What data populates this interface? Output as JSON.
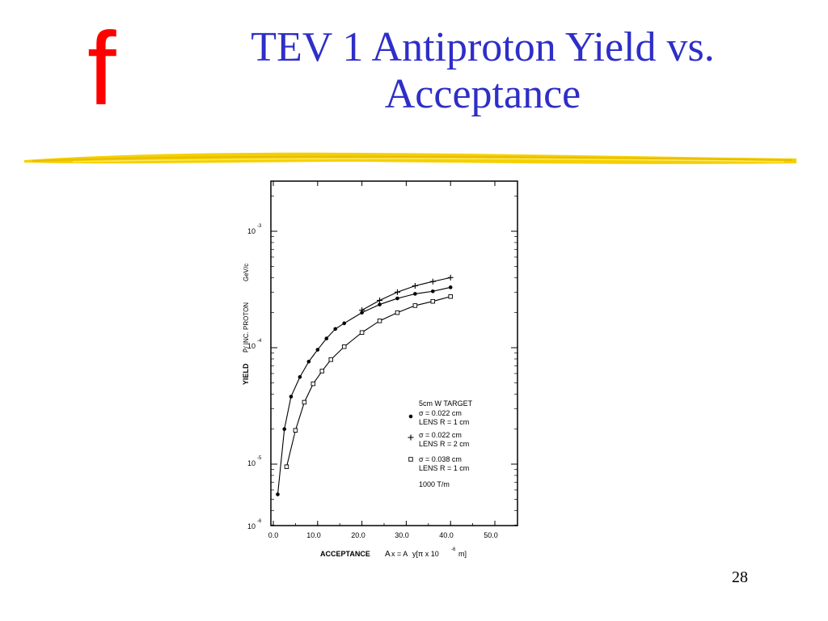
{
  "slide": {
    "logo": "f",
    "title_line1": "TEV 1 Antiproton Yield vs.",
    "title_line2": "Acceptance",
    "slide_number": "28",
    "colors": {
      "title": "#2e2ec8",
      "logo": "#ff0000",
      "rule": "#f5d000"
    }
  },
  "chart_data": {
    "type": "scatter",
    "xlabel": "ACCEPTANCE",
    "xlabel_formula": "A",
    "x_ticks": [
      "0.0",
      "10.0",
      "20.0",
      "30.0",
      "40.0",
      "50.0"
    ],
    "y_ticks": [
      "10",
      "10",
      "10",
      "10"
    ],
    "y_tick_exponents": [
      "-3",
      "-4",
      "-5",
      "-6"
    ],
    "ylabel_prefix": "YIELD",
    "ylabel_inner": "P̄/ INC. PROTON",
    "ylabel_unit": "GeV/c",
    "xlim": [
      0,
      55
    ],
    "ylim_log10": [
      -6,
      -2.6
    ],
    "yscale": "log",
    "legend": {
      "header": "5cm W TARGET",
      "footer": "1000 T/m"
    },
    "series": [
      {
        "marker": "dot",
        "legend_lines": [
          "σ = 0.022 cm",
          "LENS R = 1 cm"
        ],
        "x": [
          1.0,
          2.5,
          4.0,
          6.0,
          8.0,
          10.0,
          12.0,
          14.0,
          16.0,
          20.0,
          24.0,
          28.0,
          32.0,
          36.0,
          40.0
        ],
        "y": [
          5.5e-06,
          2e-05,
          3.8e-05,
          5.6e-05,
          7.6e-05,
          9.6e-05,
          0.00012,
          0.000145,
          0.000162,
          0.0002,
          0.000235,
          0.000265,
          0.00029,
          0.000305,
          0.00033
        ]
      },
      {
        "marker": "plus",
        "legend_lines": [
          "σ = 0.022 cm",
          "LENS R = 2 cm"
        ],
        "x": [
          20.0,
          24.0,
          28.0,
          32.0,
          36.0,
          40.0
        ],
        "y": [
          0.00021,
          0.000255,
          0.0003,
          0.00034,
          0.00037,
          0.0004
        ]
      },
      {
        "marker": "square",
        "legend_lines": [
          "σ = 0.038 cm",
          "LENS R = 1 cm"
        ],
        "x": [
          3.0,
          5.0,
          7.0,
          9.0,
          11.0,
          13.0,
          16.0,
          20.0,
          24.0,
          28.0,
          32.0,
          36.0,
          40.0
        ],
        "y": [
          9.5e-06,
          1.95e-05,
          3.4e-05,
          4.9e-05,
          6.3e-05,
          7.9e-05,
          0.000102,
          0.000135,
          0.00017,
          0.0002,
          0.00023,
          0.00025,
          0.000275
        ]
      }
    ]
  }
}
